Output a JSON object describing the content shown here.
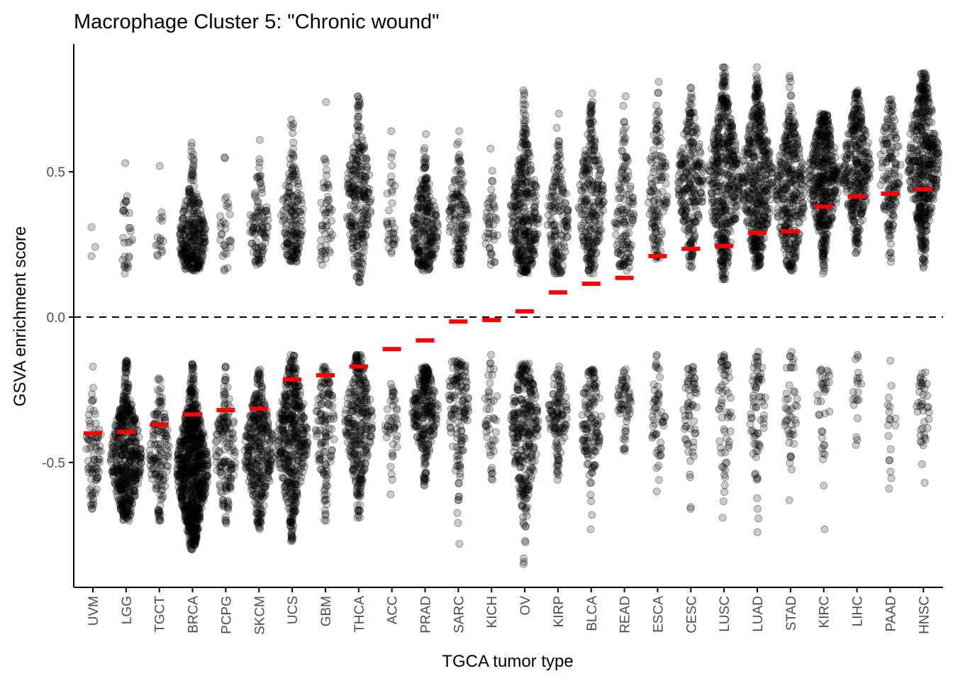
{
  "chart_data": {
    "type": "scatter",
    "title": "Macrophage Cluster 5: \"Chronic wound\"",
    "xlabel": "TGCA tumor type",
    "ylabel": "GSVA enrichment score",
    "ylim": [
      -0.93,
      0.94
    ],
    "yticks": [
      {
        "value": 0.5,
        "label": "0.5"
      },
      {
        "value": 0.0,
        "label": "0.0"
      },
      {
        "value": -0.5,
        "label": "-0.5"
      }
    ],
    "reference_line": {
      "value": 0.0,
      "style": "dashed"
    },
    "categories": [
      "UVM",
      "LGG",
      "TGCT",
      "BRCA",
      "PCPG",
      "SKCM",
      "UCS",
      "GBM",
      "THCA",
      "ACC",
      "PRAD",
      "SARC",
      "KICH",
      "OV",
      "KIRP",
      "BLCA",
      "READ",
      "ESCA",
      "CESC",
      "LUSC",
      "LUAD",
      "STAD",
      "KIRC",
      "LIHC",
      "PAAD",
      "HNSC"
    ],
    "series": [
      {
        "values": [
          -0.4,
          -0.395,
          -0.37,
          -0.335,
          -0.32,
          -0.315,
          -0.215,
          -0.2,
          -0.17,
          -0.11,
          -0.08,
          -0.015,
          -0.01,
          0.02,
          0.085,
          0.115,
          0.135,
          0.21,
          0.235,
          0.245,
          0.29,
          0.295,
          0.38,
          0.415,
          0.425,
          0.44
        ],
        "color": "#ff0000"
      }
    ],
    "distributions": {
      "UVM": {
        "pos": {
          "n": 3,
          "min": 0.21,
          "max": 0.31,
          "center": 0.26
        },
        "neg": {
          "n": 80,
          "min": -0.66,
          "max": -0.17,
          "center": -0.45
        }
      },
      "LGG": {
        "pos": {
          "n": 30,
          "min": 0.15,
          "max": 0.53,
          "center": 0.28
        },
        "neg": {
          "n": 500,
          "min": -0.7,
          "max": -0.15,
          "center": -0.48
        }
      },
      "TGCT": {
        "pos": {
          "n": 16,
          "min": 0.21,
          "max": 0.52,
          "center": 0.3
        },
        "neg": {
          "n": 140,
          "min": -0.7,
          "max": -0.21,
          "center": -0.46
        }
      },
      "BRCA": {
        "pos": {
          "n": 300,
          "min": 0.16,
          "max": 0.6,
          "center": 0.28
        },
        "neg": {
          "n": 800,
          "min": -0.8,
          "max": -0.16,
          "center": -0.52
        }
      },
      "PCPG": {
        "pos": {
          "n": 30,
          "min": 0.16,
          "max": 0.55,
          "center": 0.3
        },
        "neg": {
          "n": 150,
          "min": -0.71,
          "max": -0.17,
          "center": -0.45
        }
      },
      "SKCM": {
        "pos": {
          "n": 100,
          "min": 0.18,
          "max": 0.61,
          "center": 0.32
        },
        "neg": {
          "n": 350,
          "min": -0.73,
          "max": -0.18,
          "center": -0.46
        }
      },
      "UCS": {
        "pos": {
          "n": 170,
          "min": 0.19,
          "max": 0.68,
          "center": 0.34
        },
        "neg": {
          "n": 450,
          "min": -0.77,
          "max": -0.13,
          "center": -0.42
        }
      },
      "GBM": {
        "pos": {
          "n": 50,
          "min": 0.18,
          "max": 0.74,
          "center": 0.31
        },
        "neg": {
          "n": 130,
          "min": -0.7,
          "max": -0.17,
          "center": -0.38
        }
      },
      "THCA": {
        "pos": {
          "n": 250,
          "min": 0.12,
          "max": 0.76,
          "center": 0.4
        },
        "neg": {
          "n": 300,
          "min": -0.69,
          "max": -0.13,
          "center": -0.36
        }
      },
      "ACC": {
        "pos": {
          "n": 35,
          "min": 0.22,
          "max": 0.64,
          "center": 0.35
        },
        "neg": {
          "n": 45,
          "min": -0.61,
          "max": -0.23,
          "center": -0.38
        }
      },
      "PRAD": {
        "pos": {
          "n": 250,
          "min": 0.16,
          "max": 0.63,
          "center": 0.3
        },
        "neg": {
          "n": 260,
          "min": -0.58,
          "max": -0.17,
          "center": -0.32
        }
      },
      "SARC": {
        "pos": {
          "n": 130,
          "min": 0.18,
          "max": 0.64,
          "center": 0.35
        },
        "neg": {
          "n": 140,
          "min": -0.78,
          "max": -0.15,
          "center": -0.29
        }
      },
      "KICH": {
        "pos": {
          "n": 45,
          "min": 0.18,
          "max": 0.58,
          "center": 0.3
        },
        "neg": {
          "n": 45,
          "min": -0.56,
          "max": -0.13,
          "center": -0.32
        }
      },
      "OV": {
        "pos": {
          "n": 350,
          "min": 0.15,
          "max": 0.78,
          "center": 0.35
        },
        "neg": {
          "n": 300,
          "min": -0.85,
          "max": -0.16,
          "center": -0.38
        }
      },
      "KIRP": {
        "pos": {
          "n": 160,
          "min": 0.15,
          "max": 0.7,
          "center": 0.33
        },
        "neg": {
          "n": 120,
          "min": -0.56,
          "max": -0.17,
          "center": -0.33
        }
      },
      "BLCA": {
        "pos": {
          "n": 250,
          "min": 0.15,
          "max": 0.77,
          "center": 0.4
        },
        "neg": {
          "n": 130,
          "min": -0.73,
          "max": -0.18,
          "center": -0.36
        }
      },
      "READ": {
        "pos": {
          "n": 130,
          "min": 0.16,
          "max": 0.76,
          "center": 0.34
        },
        "neg": {
          "n": 60,
          "min": -0.46,
          "max": -0.18,
          "center": -0.29
        }
      },
      "ESCA": {
        "pos": {
          "n": 130,
          "min": 0.2,
          "max": 0.81,
          "center": 0.44
        },
        "neg": {
          "n": 55,
          "min": -0.6,
          "max": -0.13,
          "center": -0.33
        }
      },
      "CESC": {
        "pos": {
          "n": 250,
          "min": 0.17,
          "max": 0.79,
          "center": 0.47
        },
        "neg": {
          "n": 60,
          "min": -0.66,
          "max": -0.17,
          "center": -0.33
        }
      },
      "LUSC": {
        "pos": {
          "n": 450,
          "min": 0.13,
          "max": 0.86,
          "center": 0.47
        },
        "neg": {
          "n": 60,
          "min": -0.69,
          "max": -0.13,
          "center": -0.32
        }
      },
      "LUAD": {
        "pos": {
          "n": 450,
          "min": 0.17,
          "max": 0.86,
          "center": 0.47
        },
        "neg": {
          "n": 70,
          "min": -0.74,
          "max": -0.12,
          "center": -0.32
        }
      },
      "STAD": {
        "pos": {
          "n": 350,
          "min": 0.16,
          "max": 0.83,
          "center": 0.43
        },
        "neg": {
          "n": 45,
          "min": -0.63,
          "max": -0.12,
          "center": -0.29
        }
      },
      "KIRC": {
        "pos": {
          "n": 450,
          "min": 0.15,
          "max": 0.7,
          "center": 0.48
        },
        "neg": {
          "n": 35,
          "min": -0.73,
          "max": -0.18,
          "center": -0.26
        }
      },
      "LIHC": {
        "pos": {
          "n": 330,
          "min": 0.22,
          "max": 0.78,
          "center": 0.51
        },
        "neg": {
          "n": 20,
          "min": -0.44,
          "max": -0.13,
          "center": -0.28
        }
      },
      "PAAD": {
        "pos": {
          "n": 150,
          "min": 0.19,
          "max": 0.75,
          "center": 0.51
        },
        "neg": {
          "n": 18,
          "min": -0.59,
          "max": -0.15,
          "center": -0.38
        }
      },
      "HNSC": {
        "pos": {
          "n": 480,
          "min": 0.17,
          "max": 0.84,
          "center": 0.54
        },
        "neg": {
          "n": 40,
          "min": -0.57,
          "max": -0.19,
          "center": -0.32
        }
      }
    },
    "point_style": {
      "color": "#000000",
      "opacity": 0.2,
      "shape": "circle"
    },
    "grid": false
  }
}
